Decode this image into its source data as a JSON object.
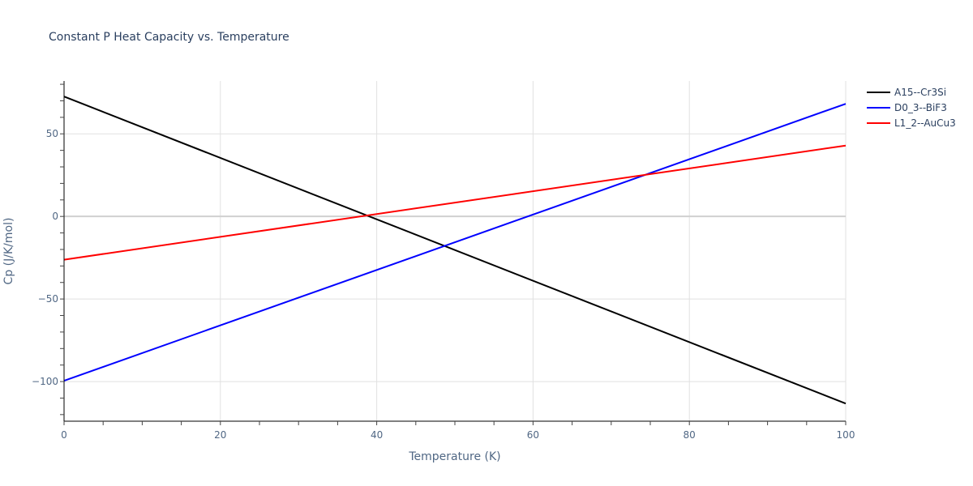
{
  "chart_data": {
    "type": "line",
    "title": "Constant P Heat Capacity vs. Temperature",
    "xlabel": "Temperature (K)",
    "ylabel": "Cp (J/K/mol)",
    "xlim": [
      0,
      100
    ],
    "ylim": [
      -124,
      82
    ],
    "x_ticks": [
      0,
      20,
      40,
      60,
      80,
      100
    ],
    "y_ticks": [
      -100,
      -50,
      0,
      50
    ],
    "y_tick_labels": [
      "−100",
      "−50",
      "0",
      "50"
    ],
    "grid": true,
    "legend_position": "right-top",
    "series": [
      {
        "name": "A15--Cr3Si",
        "color": "#000000",
        "x": [
          0,
          100
        ],
        "values": [
          72.6,
          -113.3
        ]
      },
      {
        "name": "D0_3--BiF3",
        "color": "#0000ff",
        "x": [
          0,
          100
        ],
        "values": [
          -99.5,
          68.2
        ]
      },
      {
        "name": "L1_2--AuCu3",
        "color": "#ff0000",
        "x": [
          0,
          100
        ],
        "values": [
          -26.2,
          42.9
        ]
      }
    ]
  }
}
